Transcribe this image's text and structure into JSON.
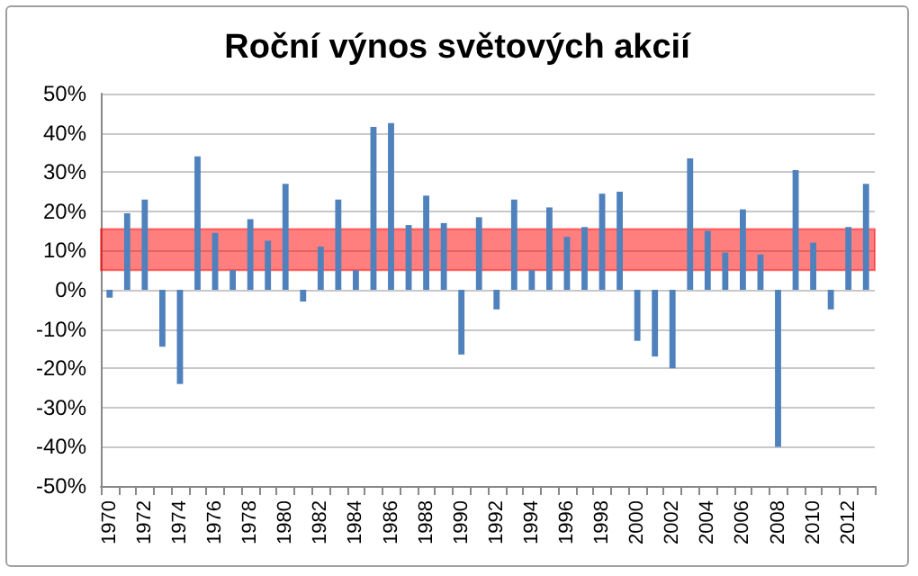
{
  "chart_data": {
    "type": "bar",
    "title": "Roční výnos světových akcií",
    "categories": [
      "1970",
      null,
      "1972",
      null,
      "1974",
      null,
      "1976",
      null,
      "1978",
      null,
      "1980",
      null,
      "1982",
      null,
      "1984",
      null,
      "1986",
      null,
      "1988",
      null,
      "1990",
      null,
      "1992",
      null,
      "1994",
      null,
      "1996",
      null,
      "1998",
      null,
      "2000",
      null,
      "2002",
      null,
      "2004",
      null,
      "2006",
      null,
      "2008",
      null,
      "2010",
      null,
      "2012",
      null
    ],
    "values": [
      -2,
      19.5,
      23,
      -14.5,
      -24,
      34,
      14.5,
      5,
      18,
      12.5,
      27,
      -3,
      11,
      23,
      5,
      41.5,
      42.5,
      16.5,
      24,
      17,
      -16.5,
      18.5,
      -5,
      23,
      5,
      21,
      13.5,
      16,
      24.5,
      25,
      -13,
      -17,
      -20,
      33.5,
      15,
      9.5,
      20.5,
      9,
      -40,
      30.5,
      12,
      -5,
      16,
      27
    ],
    "color": "#4f81bd",
    "ylim": [
      -50,
      50
    ],
    "yticks": [
      {
        "value": -50,
        "label": "-50%"
      },
      {
        "value": -40,
        "label": "-40%"
      },
      {
        "value": -30,
        "label": "-30%"
      },
      {
        "value": -20,
        "label": "-20%"
      },
      {
        "value": -10,
        "label": "-10%"
      },
      {
        "value": 0,
        "label": "0%"
      },
      {
        "value": 10,
        "label": "10%"
      },
      {
        "value": 20,
        "label": "20%"
      },
      {
        "value": 30,
        "label": "30%"
      },
      {
        "value": 40,
        "label": "40%"
      },
      {
        "value": 50,
        "label": "50%"
      }
    ],
    "bands": [
      {
        "axis": "y",
        "from": 5,
        "to": 15.5,
        "color": "#ff0000"
      }
    ],
    "grid": "y"
  }
}
